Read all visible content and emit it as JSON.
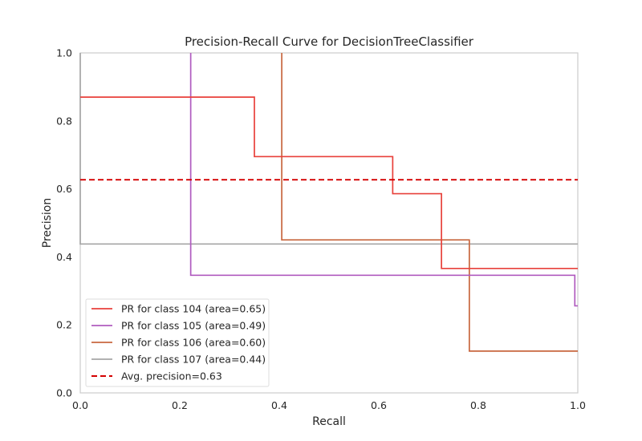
{
  "chart_data": {
    "type": "line",
    "title": "Precision-Recall Curve for DecisionTreeClassifier",
    "xlabel": "Recall",
    "ylabel": "Precision",
    "xlim": [
      0,
      1
    ],
    "ylim": [
      0,
      1
    ],
    "xticks": [
      "0.0",
      "0.2",
      "0.4",
      "0.6",
      "0.8",
      "1.0"
    ],
    "yticks": [
      "0.0",
      "0.2",
      "0.4",
      "0.6",
      "0.8",
      "1.0"
    ],
    "grid": false,
    "legend_position": "lower-left",
    "series": [
      {
        "name": "PR for class 104 (area=0.65)",
        "color": "#e8413b",
        "style": "step",
        "points": [
          [
            0,
            0.87
          ],
          [
            0.35,
            0.87
          ],
          [
            0.35,
            0.695
          ],
          [
            0.628,
            0.695
          ],
          [
            0.628,
            0.586
          ],
          [
            0.726,
            0.586
          ],
          [
            0.726,
            0.366
          ],
          [
            1.0,
            0.366
          ]
        ]
      },
      {
        "name": "PR for class 105 (area=0.49)",
        "color": "#b05bbf",
        "style": "step",
        "points": [
          [
            0.222,
            1.0
          ],
          [
            0.222,
            0.346
          ],
          [
            0.994,
            0.346
          ],
          [
            0.994,
            0.256
          ],
          [
            1.0,
            0.256
          ]
        ]
      },
      {
        "name": "PR for class 106 (area=0.60)",
        "color": "#c8673f",
        "style": "step",
        "points": [
          [
            0.405,
            1.0
          ],
          [
            0.405,
            0.45
          ],
          [
            0.782,
            0.45
          ],
          [
            0.782,
            0.123
          ],
          [
            1.0,
            0.123
          ]
        ]
      },
      {
        "name": "PR for class 107 (area=0.44)",
        "color": "#a6a6a6",
        "style": "step",
        "points": [
          [
            0,
            1.0
          ],
          [
            0,
            0.438
          ],
          [
            1.0,
            0.438
          ]
        ]
      },
      {
        "name": "Avg. precision=0.63",
        "color": "#d40000",
        "style": "dashed",
        "points": [
          [
            0,
            0.627
          ],
          [
            1.0,
            0.627
          ]
        ]
      }
    ]
  }
}
